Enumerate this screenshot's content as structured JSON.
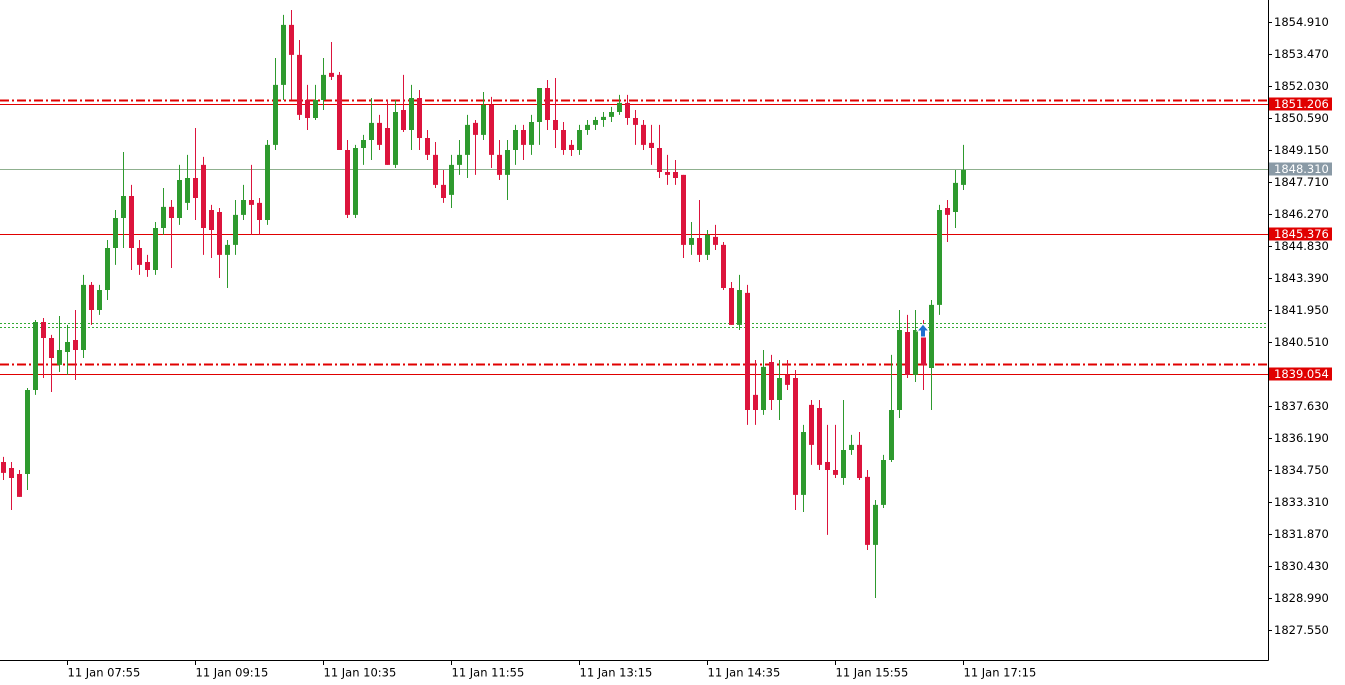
{
  "chart_data": {
    "type": "candlestick",
    "up_color": "#2e9a2e",
    "down_color": "#dc143c",
    "ylim": [
      1826.2,
      1855.9
    ],
    "yticks": [
      {
        "value": 1854.91,
        "label": "1854.910"
      },
      {
        "value": 1853.47,
        "label": "1853.470"
      },
      {
        "value": 1852.03,
        "label": "1852.030"
      },
      {
        "value": 1850.59,
        "label": "1850.590"
      },
      {
        "value": 1849.15,
        "label": "1849.150"
      },
      {
        "value": 1847.71,
        "label": "1847.710"
      },
      {
        "value": 1846.27,
        "label": "1846.270"
      },
      {
        "value": 1844.83,
        "label": "1844.830"
      },
      {
        "value": 1843.39,
        "label": "1843.390"
      },
      {
        "value": 1841.95,
        "label": "1841.950"
      },
      {
        "value": 1840.51,
        "label": "1840.510"
      },
      {
        "value": 1839.07,
        "label": "1839.070"
      },
      {
        "value": 1837.63,
        "label": "1837.630"
      },
      {
        "value": 1836.19,
        "label": "1836.190"
      },
      {
        "value": 1834.75,
        "label": "1834.750"
      },
      {
        "value": 1833.31,
        "label": "1833.310"
      },
      {
        "value": 1831.87,
        "label": "1831.870"
      },
      {
        "value": 1830.43,
        "label": "1830.430"
      },
      {
        "value": 1828.99,
        "label": "1828.990"
      },
      {
        "value": 1827.55,
        "label": "1827.550"
      }
    ],
    "categories": [
      null,
      null,
      null,
      null,
      null,
      null,
      null,
      null,
      "11 Jan 07:55",
      null,
      null,
      null,
      null,
      null,
      null,
      null,
      null,
      null,
      null,
      null,
      null,
      null,
      null,
      null,
      "11 Jan 09:15",
      null,
      null,
      null,
      null,
      null,
      null,
      null,
      null,
      null,
      null,
      null,
      null,
      null,
      null,
      null,
      "11 Jan 10:35",
      null,
      null,
      null,
      null,
      null,
      null,
      null,
      null,
      null,
      null,
      null,
      null,
      null,
      null,
      null,
      "11 Jan 11:55",
      null,
      null,
      null,
      null,
      null,
      null,
      null,
      null,
      null,
      null,
      null,
      null,
      null,
      null,
      null,
      "11 Jan 13:15",
      null,
      null,
      null,
      null,
      null,
      null,
      null,
      null,
      null,
      null,
      null,
      null,
      null,
      null,
      null,
      "11 Jan 14:35",
      null,
      null,
      null,
      null,
      null,
      null,
      null,
      null,
      null,
      null,
      null,
      null,
      null,
      null,
      null,
      "11 Jan 15:55",
      null,
      null,
      null,
      null,
      null,
      null,
      null,
      null,
      null,
      null,
      null,
      null,
      null,
      null,
      null,
      "11 Jan 17:15"
    ],
    "ohlc": [
      [
        1835.11,
        1835.34,
        1834.3,
        1834.62
      ],
      [
        1834.84,
        1835.11,
        1832.95,
        1834.39
      ],
      [
        1834.57,
        1834.75,
        1833.54,
        1833.54
      ],
      [
        1834.57,
        1838.44,
        1833.85,
        1838.35
      ],
      [
        1838.35,
        1841.5,
        1838.13,
        1841.41
      ],
      [
        1841.41,
        1841.59,
        1838.89,
        1840.69
      ],
      [
        1840.69,
        1840.83,
        1838.26,
        1839.79
      ],
      [
        1839.48,
        1841.68,
        1839.16,
        1840.15
      ],
      [
        1840.06,
        1841.28,
        1839.03,
        1840.51
      ],
      [
        1840.6,
        1841.95,
        1838.8,
        1840.15
      ],
      [
        1840.15,
        1843.53,
        1839.79,
        1843.08
      ],
      [
        1843.08,
        1843.21,
        1841.28,
        1841.95
      ],
      [
        1841.95,
        1843.08,
        1841.73,
        1842.85
      ],
      [
        1842.85,
        1845.1,
        1842.4,
        1844.74
      ],
      [
        1844.74,
        1846.45,
        1843.98,
        1846.09
      ],
      [
        1846.09,
        1849.06,
        1844.74,
        1847.08
      ],
      [
        1847.08,
        1847.58,
        1843.75,
        1844.74
      ],
      [
        1844.74,
        1845.1,
        1843.53,
        1843.98
      ],
      [
        1844.11,
        1844.43,
        1843.44,
        1843.75
      ],
      [
        1843.75,
        1845.91,
        1843.53,
        1845.64
      ],
      [
        1845.64,
        1847.44,
        1845.33,
        1846.59
      ],
      [
        1846.59,
        1846.9,
        1843.84,
        1846.09
      ],
      [
        1846.09,
        1848.48,
        1845.78,
        1847.8
      ],
      [
        1846.77,
        1848.93,
        1846.45,
        1847.89
      ],
      [
        1847.89,
        1850.14,
        1846.0,
        1846.99
      ],
      [
        1848.48,
        1848.84,
        1844.43,
        1845.64
      ],
      [
        1846.45,
        1846.68,
        1844.29,
        1845.55
      ],
      [
        1846.36,
        1846.54,
        1843.39,
        1844.43
      ],
      [
        1844.43,
        1845.1,
        1842.94,
        1844.88
      ],
      [
        1844.88,
        1846.9,
        1844.43,
        1846.23
      ],
      [
        1846.23,
        1847.58,
        1846.0,
        1846.9
      ],
      [
        1846.9,
        1848.48,
        1845.33,
        1846.68
      ],
      [
        1846.77,
        1846.99,
        1845.33,
        1846.0
      ],
      [
        1846.0,
        1849.6,
        1845.78,
        1849.38
      ],
      [
        1849.38,
        1853.29,
        1849.15,
        1852.08
      ],
      [
        1852.08,
        1855.23,
        1851.4,
        1854.78
      ],
      [
        1854.78,
        1855.45,
        1851.4,
        1853.43
      ],
      [
        1853.43,
        1854.1,
        1850.5,
        1850.73
      ],
      [
        1851.4,
        1852.08,
        1850.05,
        1850.59
      ],
      [
        1850.59,
        1852.08,
        1850.5,
        1851.4
      ],
      [
        1851.4,
        1853.29,
        1850.95,
        1852.53
      ],
      [
        1852.62,
        1854.01,
        1852.3,
        1852.44
      ],
      [
        1852.53,
        1852.66,
        1849.15,
        1849.15
      ],
      [
        1849.15,
        1849.6,
        1846.09,
        1846.23
      ],
      [
        1846.23,
        1849.38,
        1846.09,
        1849.24
      ],
      [
        1849.24,
        1849.83,
        1848.48,
        1849.6
      ],
      [
        1849.6,
        1851.49,
        1848.7,
        1850.37
      ],
      [
        1850.37,
        1850.73,
        1849.15,
        1849.38
      ],
      [
        1850.14,
        1851.4,
        1848.48,
        1848.48
      ],
      [
        1848.48,
        1851.4,
        1848.34,
        1850.86
      ],
      [
        1850.95,
        1852.53,
        1849.96,
        1850.05
      ],
      [
        1850.05,
        1852.08,
        1849.15,
        1851.49
      ],
      [
        1851.49,
        1851.85,
        1849.15,
        1849.69
      ],
      [
        1849.69,
        1850.05,
        1848.7,
        1848.93
      ],
      [
        1848.93,
        1849.51,
        1847.44,
        1847.58
      ],
      [
        1847.58,
        1848.25,
        1846.77,
        1846.99
      ],
      [
        1847.13,
        1848.93,
        1846.54,
        1848.48
      ],
      [
        1848.48,
        1849.6,
        1848.03,
        1848.93
      ],
      [
        1848.93,
        1850.73,
        1847.89,
        1850.28
      ],
      [
        1850.37,
        1850.5,
        1848.03,
        1849.83
      ],
      [
        1849.83,
        1851.76,
        1849.6,
        1851.18
      ],
      [
        1851.18,
        1851.54,
        1848.34,
        1848.93
      ],
      [
        1848.93,
        1849.6,
        1847.8,
        1848.03
      ],
      [
        1848.03,
        1849.6,
        1846.9,
        1849.15
      ],
      [
        1849.15,
        1850.28,
        1848.48,
        1850.05
      ],
      [
        1850.05,
        1850.28,
        1848.7,
        1849.38
      ],
      [
        1849.38,
        1850.73,
        1848.93,
        1850.41
      ],
      [
        1850.41,
        1851.94,
        1849.38,
        1851.94
      ],
      [
        1851.94,
        1852.3,
        1850.05,
        1850.5
      ],
      [
        1850.5,
        1852.39,
        1849.24,
        1850.05
      ],
      [
        1850.05,
        1850.41,
        1848.93,
        1849.15
      ],
      [
        1849.38,
        1849.6,
        1848.88,
        1849.15
      ],
      [
        1849.15,
        1850.28,
        1848.93,
        1850.05
      ],
      [
        1850.05,
        1850.5,
        1849.83,
        1850.28
      ],
      [
        1850.28,
        1850.64,
        1850.05,
        1850.5
      ],
      [
        1850.5,
        1850.86,
        1850.19,
        1850.64
      ],
      [
        1850.64,
        1851.09,
        1850.41,
        1850.86
      ],
      [
        1850.86,
        1851.63,
        1850.73,
        1851.27
      ],
      [
        1851.27,
        1851.63,
        1850.28,
        1850.59
      ],
      [
        1850.59,
        1850.95,
        1849.38,
        1850.28
      ],
      [
        1850.28,
        1850.5,
        1849.15,
        1849.38
      ],
      [
        1849.47,
        1850.28,
        1848.48,
        1849.24
      ],
      [
        1849.24,
        1850.28,
        1847.89,
        1848.16
      ],
      [
        1848.16,
        1848.93,
        1847.58,
        1848.03
      ],
      [
        1848.16,
        1848.7,
        1847.58,
        1847.89
      ],
      [
        1848.03,
        1848.03,
        1844.29,
        1844.88
      ],
      [
        1844.88,
        1845.91,
        1844.43,
        1845.19
      ],
      [
        1845.19,
        1846.9,
        1844.11,
        1844.43
      ],
      [
        1844.43,
        1845.55,
        1844.2,
        1845.33
      ],
      [
        1845.24,
        1845.78,
        1844.65,
        1844.88
      ],
      [
        1844.88,
        1845.01,
        1842.85,
        1842.94
      ],
      [
        1842.94,
        1843.21,
        1841.28,
        1841.28
      ],
      [
        1841.28,
        1843.53,
        1841.05,
        1842.85
      ],
      [
        1842.72,
        1843.08,
        1836.78,
        1837.45
      ],
      [
        1838.13,
        1839.7,
        1836.78,
        1837.45
      ],
      [
        1837.45,
        1840.15,
        1837.23,
        1839.39
      ],
      [
        1839.61,
        1839.93,
        1837.45,
        1837.9
      ],
      [
        1837.9,
        1839.7,
        1837.0,
        1838.89
      ],
      [
        1839.03,
        1839.7,
        1838.35,
        1838.58
      ],
      [
        1838.89,
        1839.25,
        1832.95,
        1833.63
      ],
      [
        1833.63,
        1836.78,
        1832.86,
        1836.46
      ],
      [
        1837.68,
        1837.9,
        1834.98,
        1835.88
      ],
      [
        1837.54,
        1837.9,
        1834.75,
        1834.98
      ],
      [
        1835.11,
        1836.78,
        1831.83,
        1834.75
      ],
      [
        1834.75,
        1836.78,
        1834.39,
        1834.53
      ],
      [
        1834.39,
        1837.9,
        1834.08,
        1835.65
      ],
      [
        1835.65,
        1836.33,
        1835.43,
        1835.88
      ],
      [
        1835.88,
        1836.46,
        1834.3,
        1834.39
      ],
      [
        1834.44,
        1834.75,
        1831.15,
        1831.38
      ],
      [
        1831.38,
        1833.4,
        1828.99,
        1833.18
      ],
      [
        1833.18,
        1835.43,
        1833.04,
        1835.2
      ],
      [
        1835.2,
        1839.93,
        1835.11,
        1837.45
      ],
      [
        1837.45,
        1841.95,
        1837.09,
        1841.05
      ],
      [
        1840.96,
        1841.73,
        1838.89,
        1839.03
      ],
      [
        1839.03,
        1841.95,
        1838.71,
        1841.05
      ],
      [
        1841.05,
        1841.5,
        1838.35,
        1839.48
      ],
      [
        1839.34,
        1842.4,
        1837.45,
        1842.18
      ],
      [
        1842.18,
        1846.68,
        1841.73,
        1846.45
      ],
      [
        1846.54,
        1846.9,
        1845.01,
        1846.23
      ],
      [
        1846.36,
        1848.25,
        1845.64,
        1847.67
      ],
      [
        1847.58,
        1849.38,
        1847.35,
        1848.25
      ]
    ],
    "levels": [
      {
        "value": 1851.4,
        "color": "#e00000",
        "style": "dashdot",
        "boxed": false
      },
      {
        "value": 1851.206,
        "color": "#e00000",
        "style": "solid",
        "boxed": true
      },
      {
        "value": 1845.376,
        "color": "#e00000",
        "style": "solid",
        "boxed": true
      },
      {
        "value": 1841.37,
        "color": "#33aa33",
        "style": "dotted",
        "boxed": false
      },
      {
        "value": 1841.19,
        "color": "#33aa33",
        "style": "dotted",
        "boxed": false
      },
      {
        "value": 1839.52,
        "color": "#e00000",
        "style": "dashdot",
        "boxed": false
      },
      {
        "value": 1839.054,
        "color": "#e00000",
        "style": "solid",
        "boxed": true
      }
    ],
    "current_price": {
      "value": 1848.31,
      "label": "1848.310",
      "color": "#8a9aa6"
    }
  }
}
